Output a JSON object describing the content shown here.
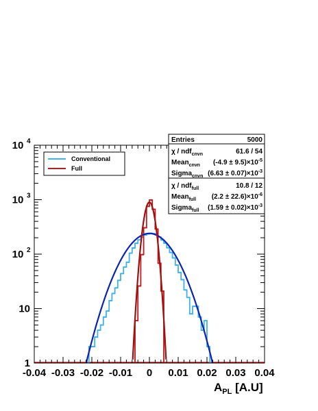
{
  "chart_data": {
    "type": "histogram",
    "title": "",
    "xlabel_main": "A",
    "xlabel_sub": "PL",
    "xlabel_unit": "[A.U]",
    "ylabel": "",
    "xlim": [
      -0.04,
      0.04
    ],
    "ylim": [
      1,
      10000
    ],
    "yscale": "log",
    "grid": false,
    "x_ticks": [
      "-0.04",
      "-0.03",
      "-0.02",
      "-0.01",
      "0",
      "0.01",
      "0.02",
      "0.03",
      "0.04"
    ],
    "y_ticks": [
      {
        "value": 10000,
        "base": "10",
        "exp": "4"
      },
      {
        "value": 1000,
        "base": "10",
        "exp": "3"
      },
      {
        "value": 100,
        "base": "10",
        "exp": "2"
      },
      {
        "value": 10,
        "base": "10",
        "exp": ""
      },
      {
        "value": 1,
        "base": "1",
        "exp": ""
      }
    ],
    "bin_width": 0.001,
    "legend": {
      "placement": "top-left",
      "entries": [
        {
          "label": "Conventional",
          "color": "#3fb0e8"
        },
        {
          "label": "Full",
          "color": "#c0181c"
        }
      ]
    },
    "stats": {
      "entries_label": "Entries",
      "entries_value": "5000",
      "rows": [
        {
          "label": "χ / ndf",
          "sub": "cnvn",
          "value": "61.6 / 54"
        },
        {
          "label": "Mean",
          "sub": "cnvn",
          "value": "(-4.9 ± 9.5)×10",
          "exp": "-5"
        },
        {
          "label": "Sigma",
          "sub": "cnvn",
          "value": "(6.63 ± 0.07)×10",
          "exp": "-3"
        },
        {
          "label": "χ / ndf",
          "sub": "full",
          "value": "10.8 / 12"
        },
        {
          "label": "Mean",
          "sub": "full",
          "value": "(2.2 ± 22.6)×10",
          "exp": "-6"
        },
        {
          "label": "Sigma",
          "sub": "full",
          "value": "(1.59 ± 0.02)×10",
          "exp": "-3"
        }
      ]
    },
    "series": [
      {
        "name": "Conventional",
        "color": "#3fb0e8",
        "kind": "histogram",
        "bins_x_low": [
          -0.022,
          -0.021,
          -0.02,
          -0.019,
          -0.018,
          -0.017,
          -0.016,
          -0.015,
          -0.014,
          -0.013,
          -0.012,
          -0.011,
          -0.01,
          -0.009,
          -0.008,
          -0.007,
          -0.006,
          -0.005,
          -0.004,
          -0.003,
          -0.002,
          -0.001,
          0.0,
          0.001,
          0.002,
          0.003,
          0.004,
          0.005,
          0.006,
          0.007,
          0.008,
          0.009,
          0.01,
          0.011,
          0.012,
          0.013,
          0.014,
          0.015,
          0.016,
          0.017,
          0.018,
          0.019,
          0.02,
          0.021
        ],
        "counts": [
          1,
          2,
          2,
          3,
          4,
          5,
          7,
          9,
          14,
          19,
          24,
          33,
          44,
          58,
          71,
          104,
          130,
          158,
          183,
          205,
          224,
          235,
          242,
          238,
          226,
          206,
          182,
          159,
          131,
          107,
          85,
          63,
          46,
          34,
          22,
          16,
          8,
          11,
          11,
          7,
          4,
          6,
          2,
          1
        ]
      },
      {
        "name": "Full",
        "color": "#c0181c",
        "kind": "histogram",
        "bins_x_low": [
          -0.006,
          -0.005,
          -0.004,
          -0.003,
          -0.002,
          -0.001,
          0.0,
          0.001,
          0.002,
          0.003,
          0.004,
          0.005
        ],
        "counts": [
          1,
          6,
          26,
          98,
          305,
          753,
          990,
          667,
          289,
          68,
          21,
          1
        ]
      },
      {
        "name": "Conventional fit",
        "color": "#0a24b0",
        "kind": "gaussian",
        "amplitude": 240,
        "mean": 0.0,
        "sigma": 0.00663
      },
      {
        "name": "Full fit",
        "color": "#9c1010",
        "kind": "gaussian",
        "amplitude": 900,
        "mean": 0.0,
        "sigma": 0.00159
      }
    ]
  }
}
